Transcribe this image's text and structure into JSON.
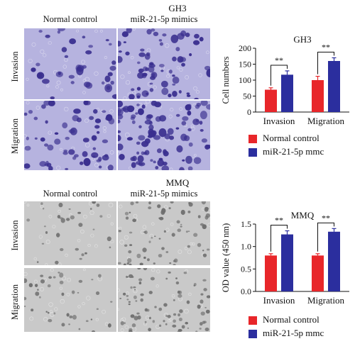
{
  "gh3": {
    "title": "GH3",
    "col_labels": [
      "Normal control",
      "miR-21-5p mimics"
    ],
    "row_labels": [
      "Invasion",
      "Migration"
    ],
    "stain_color": "#3a2f8f",
    "bg_color": "#b6b3df"
  },
  "mmq": {
    "title": "MMQ",
    "col_labels": [
      "Normal control",
      "miR-21-5p mimics"
    ],
    "row_labels": [
      "Invasion",
      "Migration"
    ],
    "stain_color": "#6f6f6f",
    "bg_color": "#c9c9c9"
  },
  "legend": {
    "normal": "Normal control",
    "mimic": "miR-21-5p mmc",
    "normal_color": "#e8262a",
    "mimic_color": "#2b2e9e"
  },
  "sig_marker": "**",
  "chart_data": [
    {
      "type": "bar",
      "title": "GH3",
      "ylabel": "Cell numbers",
      "categories": [
        "Invasion",
        "Migration"
      ],
      "ylim": [
        0,
        200
      ],
      "yticks": [
        0,
        50,
        100,
        150,
        200
      ],
      "series": [
        {
          "name": "Normal control",
          "values": [
            70,
            100
          ],
          "errors": [
            6,
            12
          ]
        },
        {
          "name": "miR-21-5p mmc",
          "values": [
            117,
            160
          ],
          "errors": [
            12,
            10
          ]
        }
      ]
    },
    {
      "type": "bar",
      "title": "MMQ",
      "ylabel": "OD value (450 nm)",
      "categories": [
        "Invasion",
        "Migration"
      ],
      "ylim": [
        0,
        1.5
      ],
      "yticks": [
        0.0,
        0.5,
        1.0,
        1.5
      ],
      "ytick_labels": [
        "0.0",
        "0.5",
        "1.0",
        "1.5"
      ],
      "series": [
        {
          "name": "Normal control",
          "values": [
            0.8,
            0.8
          ],
          "errors": [
            0.04,
            0.04
          ]
        },
        {
          "name": "miR-21-5p mmc",
          "values": [
            1.27,
            1.33
          ],
          "errors": [
            0.08,
            0.07
          ]
        }
      ]
    }
  ]
}
